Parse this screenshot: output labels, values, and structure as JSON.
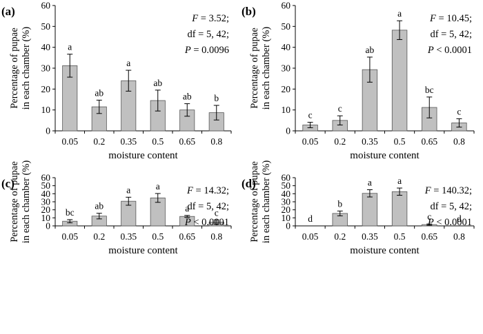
{
  "chart_data": [
    {
      "type": "bar",
      "panel_label": "(a)",
      "categories": [
        "0.05",
        "0.2",
        "0.35",
        "0.5",
        "0.65",
        "0.8"
      ],
      "values": [
        31.2,
        11.5,
        24.0,
        14.5,
        10.0,
        8.7
      ],
      "errors": [
        5.5,
        3.2,
        5.0,
        5.0,
        3.0,
        3.5
      ],
      "letters": [
        "a",
        "ab",
        "a",
        "ab",
        "ab",
        "b"
      ],
      "stats": [
        {
          "label": "F",
          "value": " = 3.52;"
        },
        {
          "label": "",
          "value": "df = 5, 42;"
        },
        {
          "label": "P",
          "value": " = 0.0096"
        }
      ],
      "xlabel": "moisture content",
      "ylabel_lines": [
        "Percentage of pupae",
        "in each chamber (%)"
      ],
      "ylim": [
        0,
        60
      ],
      "yticks": [
        "0",
        "10",
        "20",
        "30",
        "40",
        "50",
        "60"
      ]
    },
    {
      "type": "bar",
      "panel_label": "(b)",
      "categories": [
        "0.05",
        "0.2",
        "0.35",
        "0.5",
        "0.65",
        "0.8"
      ],
      "values": [
        2.8,
        5.0,
        29.3,
        48.2,
        11.2,
        3.8
      ],
      "errors": [
        1.3,
        2.2,
        6.0,
        4.5,
        5.0,
        2.0
      ],
      "letters": [
        "c",
        "c",
        "ab",
        "a",
        "bc",
        "c"
      ],
      "stats": [
        {
          "label": "F",
          "value": " = 10.45;"
        },
        {
          "label": "",
          "value": "df = 5, 42;"
        },
        {
          "label": "P",
          "value": " < 0.0001"
        }
      ],
      "xlabel": "moisture content",
      "ylabel_lines": [
        "Percentage of pupae",
        "in each chamber (%)"
      ],
      "ylim": [
        0,
        60
      ],
      "yticks": [
        "0",
        "10",
        "20",
        "30",
        "40",
        "50",
        "60"
      ]
    },
    {
      "type": "bar",
      "panel_label": "(c)",
      "categories": [
        "0.05",
        "0.2",
        "0.35",
        "0.5",
        "0.65",
        "0.8"
      ],
      "values": [
        5.8,
        12.2,
        30.7,
        34.8,
        11.8,
        4.7
      ],
      "errors": [
        2.0,
        3.5,
        5.0,
        5.5,
        1.2,
        2.8
      ],
      "letters": [
        "bc",
        "ab",
        "a",
        "a",
        "a",
        "c"
      ],
      "stats": [
        {
          "label": "F",
          "value": " = 14.32;"
        },
        {
          "label": "",
          "value": "df = 5, 42;"
        },
        {
          "label": "P",
          "value": " < 0.0001"
        }
      ],
      "xlabel": "moisture content",
      "ylabel_lines": [
        "Percentage of pupae",
        "in each chamber (%)"
      ],
      "ylim": [
        0,
        60
      ],
      "yticks": [
        "0",
        "10",
        "20",
        "30",
        "40",
        "50",
        "60"
      ]
    },
    {
      "type": "bar",
      "panel_label": "(d)",
      "categories": [
        "0.05",
        "0.2",
        "0.35",
        "0.5",
        "0.65",
        "0.8"
      ],
      "values": [
        0,
        15.5,
        40.5,
        42.6,
        1.6,
        0
      ],
      "errors": [
        0,
        3.0,
        4.5,
        4.5,
        0.8,
        0
      ],
      "letters": [
        "d",
        "b",
        "a",
        "a",
        "c",
        "d"
      ],
      "stats": [
        {
          "label": "F",
          "value": " = 140.32;"
        },
        {
          "label": "",
          "value": "df = 5, 42;"
        },
        {
          "label": "P",
          "value": " < 0.0001"
        }
      ],
      "xlabel": "moisture content",
      "ylabel_lines": [
        "Percentage of pupae",
        "in each chamber (%)"
      ],
      "ylim": [
        0,
        60
      ],
      "yticks": [
        "0",
        "10",
        "20",
        "30",
        "40",
        "50",
        "60"
      ]
    }
  ],
  "colors": {
    "bar_fill": "#c0c0c0",
    "bar_stroke": "#555555",
    "axis": "#000000",
    "text": "#000000"
  }
}
